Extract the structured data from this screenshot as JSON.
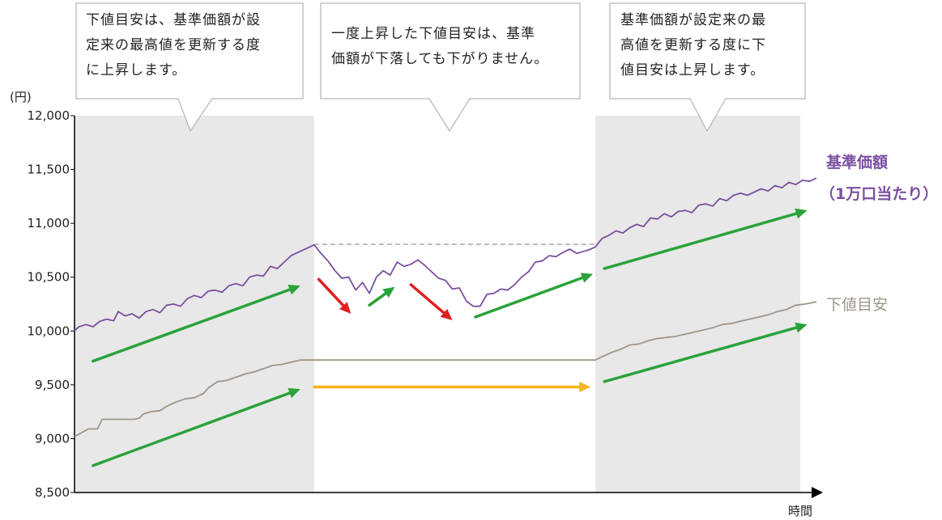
{
  "chart_data": {
    "type": "line",
    "y_unit": "(円)",
    "xlabel": "時間",
    "ylim": [
      8500,
      12000
    ],
    "yticks": [
      "12,000",
      "11,500",
      "11,000",
      "10,500",
      "10,000",
      "9,500",
      "9,000",
      "8,500"
    ],
    "ytick_values": [
      12000,
      11500,
      11000,
      10500,
      10000,
      9500,
      9000,
      8500
    ],
    "shaded_regions": [
      {
        "from": 0,
        "to": 104
      },
      {
        "from": 226,
        "to": 315
      }
    ],
    "reference_line": {
      "from": 104,
      "to": 226,
      "value": 10805,
      "style": "dashed",
      "color": "#a6a6a6"
    },
    "series": [
      {
        "name": "基準価額",
        "name_sub": "（1万口当たり）",
        "color": "#7a4fa0",
        "points": [
          [
            0,
            10005
          ],
          [
            2,
            10040
          ],
          [
            5,
            10060
          ],
          [
            8,
            10040
          ],
          [
            11,
            10090
          ],
          [
            14,
            10110
          ],
          [
            17,
            10095
          ],
          [
            19,
            10180
          ],
          [
            22,
            10140
          ],
          [
            25,
            10160
          ],
          [
            28,
            10120
          ],
          [
            31,
            10180
          ],
          [
            34,
            10200
          ],
          [
            37,
            10170
          ],
          [
            40,
            10240
          ],
          [
            43,
            10250
          ],
          [
            46,
            10230
          ],
          [
            49,
            10300
          ],
          [
            52,
            10330
          ],
          [
            55,
            10310
          ],
          [
            58,
            10370
          ],
          [
            61,
            10380
          ],
          [
            64,
            10360
          ],
          [
            67,
            10420
          ],
          [
            70,
            10440
          ],
          [
            73,
            10420
          ],
          [
            76,
            10500
          ],
          [
            79,
            10520
          ],
          [
            82,
            10510
          ],
          [
            85,
            10600
          ],
          [
            88,
            10580
          ],
          [
            91,
            10640
          ],
          [
            94,
            10700
          ],
          [
            97,
            10730
          ],
          [
            100,
            10760
          ],
          [
            104,
            10800
          ],
          [
            107,
            10720
          ],
          [
            110,
            10650
          ],
          [
            113,
            10560
          ],
          [
            116,
            10490
          ],
          [
            119,
            10500
          ],
          [
            122,
            10380
          ],
          [
            125,
            10450
          ],
          [
            128,
            10350
          ],
          [
            131,
            10500
          ],
          [
            134,
            10560
          ],
          [
            137,
            10520
          ],
          [
            140,
            10640
          ],
          [
            143,
            10600
          ],
          [
            146,
            10620
          ],
          [
            149,
            10660
          ],
          [
            152,
            10610
          ],
          [
            155,
            10550
          ],
          [
            158,
            10490
          ],
          [
            161,
            10470
          ],
          [
            164,
            10390
          ],
          [
            167,
            10400
          ],
          [
            170,
            10280
          ],
          [
            173,
            10230
          ],
          [
            176,
            10230
          ],
          [
            179,
            10340
          ],
          [
            182,
            10350
          ],
          [
            185,
            10390
          ],
          [
            188,
            10380
          ],
          [
            191,
            10430
          ],
          [
            194,
            10500
          ],
          [
            197,
            10550
          ],
          [
            200,
            10640
          ],
          [
            203,
            10650
          ],
          [
            206,
            10700
          ],
          [
            209,
            10690
          ],
          [
            212,
            10730
          ],
          [
            215,
            10760
          ],
          [
            218,
            10720
          ],
          [
            221,
            10740
          ],
          [
            224,
            10760
          ],
          [
            226,
            10780
          ],
          [
            229,
            10860
          ],
          [
            232,
            10890
          ],
          [
            235,
            10930
          ],
          [
            238,
            10910
          ],
          [
            241,
            10960
          ],
          [
            244,
            10990
          ],
          [
            247,
            10970
          ],
          [
            250,
            11050
          ],
          [
            253,
            11040
          ],
          [
            256,
            11090
          ],
          [
            259,
            11060
          ],
          [
            262,
            11110
          ],
          [
            265,
            11120
          ],
          [
            268,
            11100
          ],
          [
            271,
            11170
          ],
          [
            274,
            11180
          ],
          [
            277,
            11160
          ],
          [
            280,
            11230
          ],
          [
            283,
            11210
          ],
          [
            286,
            11260
          ],
          [
            289,
            11280
          ],
          [
            292,
            11260
          ],
          [
            295,
            11290
          ],
          [
            298,
            11320
          ],
          [
            301,
            11300
          ],
          [
            304,
            11350
          ],
          [
            307,
            11330
          ],
          [
            310,
            11380
          ],
          [
            313,
            11360
          ],
          [
            316,
            11400
          ],
          [
            319,
            11390
          ],
          [
            322,
            11420
          ]
        ]
      },
      {
        "name": "下値目安",
        "color": "#9e9689",
        "points": [
          [
            0,
            9020
          ],
          [
            6,
            9090
          ],
          [
            10,
            9090
          ],
          [
            12,
            9180
          ],
          [
            17,
            9180
          ],
          [
            20,
            9180
          ],
          [
            26,
            9180
          ],
          [
            28,
            9190
          ],
          [
            30,
            9230
          ],
          [
            33,
            9250
          ],
          [
            37,
            9260
          ],
          [
            40,
            9300
          ],
          [
            44,
            9340
          ],
          [
            48,
            9370
          ],
          [
            52,
            9380
          ],
          [
            56,
            9420
          ],
          [
            58,
            9470
          ],
          [
            62,
            9530
          ],
          [
            66,
            9540
          ],
          [
            70,
            9570
          ],
          [
            74,
            9600
          ],
          [
            78,
            9620
          ],
          [
            82,
            9650
          ],
          [
            86,
            9680
          ],
          [
            90,
            9690
          ],
          [
            94,
            9710
          ],
          [
            98,
            9730
          ],
          [
            104,
            9730
          ],
          [
            226,
            9730
          ],
          [
            229,
            9760
          ],
          [
            233,
            9800
          ],
          [
            237,
            9830
          ],
          [
            241,
            9870
          ],
          [
            245,
            9880
          ],
          [
            249,
            9910
          ],
          [
            253,
            9930
          ],
          [
            257,
            9940
          ],
          [
            261,
            9950
          ],
          [
            265,
            9970
          ],
          [
            269,
            9990
          ],
          [
            273,
            10010
          ],
          [
            277,
            10030
          ],
          [
            281,
            10060
          ],
          [
            285,
            10070
          ],
          [
            289,
            10090
          ],
          [
            293,
            10110
          ],
          [
            297,
            10130
          ],
          [
            301,
            10150
          ],
          [
            305,
            10180
          ],
          [
            309,
            10200
          ],
          [
            313,
            10240
          ],
          [
            317,
            10250
          ],
          [
            322,
            10270
          ]
        ]
      }
    ],
    "trend_arrows": [
      {
        "color": "#2aa23a",
        "from": [
          8,
          9720
        ],
        "to": [
          98,
          10420
        ]
      },
      {
        "color": "#2aa23a",
        "from": [
          8,
          8750
        ],
        "to": [
          98,
          9460
        ]
      },
      {
        "color": "#e02020",
        "from": [
          106,
          10480
        ],
        "to": [
          120,
          10160
        ]
      },
      {
        "color": "#2aa23a",
        "from": [
          128,
          10240
        ],
        "to": [
          139,
          10410
        ]
      },
      {
        "color": "#e02020",
        "from": [
          146,
          10430
        ],
        "to": [
          164,
          10100
        ]
      },
      {
        "color": "#2aa23a",
        "from": [
          174,
          10130
        ],
        "to": [
          225,
          10530
        ]
      },
      {
        "color": "#f6b51e",
        "from": [
          104,
          9480
        ],
        "to": [
          224,
          9480
        ]
      },
      {
        "color": "#2aa23a",
        "from": [
          230,
          10580
        ],
        "to": [
          318,
          11120
        ]
      },
      {
        "color": "#2aa23a",
        "from": [
          230,
          9530
        ],
        "to": [
          318,
          10060
        ]
      }
    ]
  },
  "callouts": [
    {
      "text": "下値目安は、基準価額が設\n定来の最高値を更新する度\nに上昇します。"
    },
    {
      "text": "一度上昇した下値目安は、基準\n価額が下落しても下がりません。"
    },
    {
      "text": "基準価額が設定来の最\n高値を更新する度に下\n値目安は上昇します。"
    }
  ]
}
